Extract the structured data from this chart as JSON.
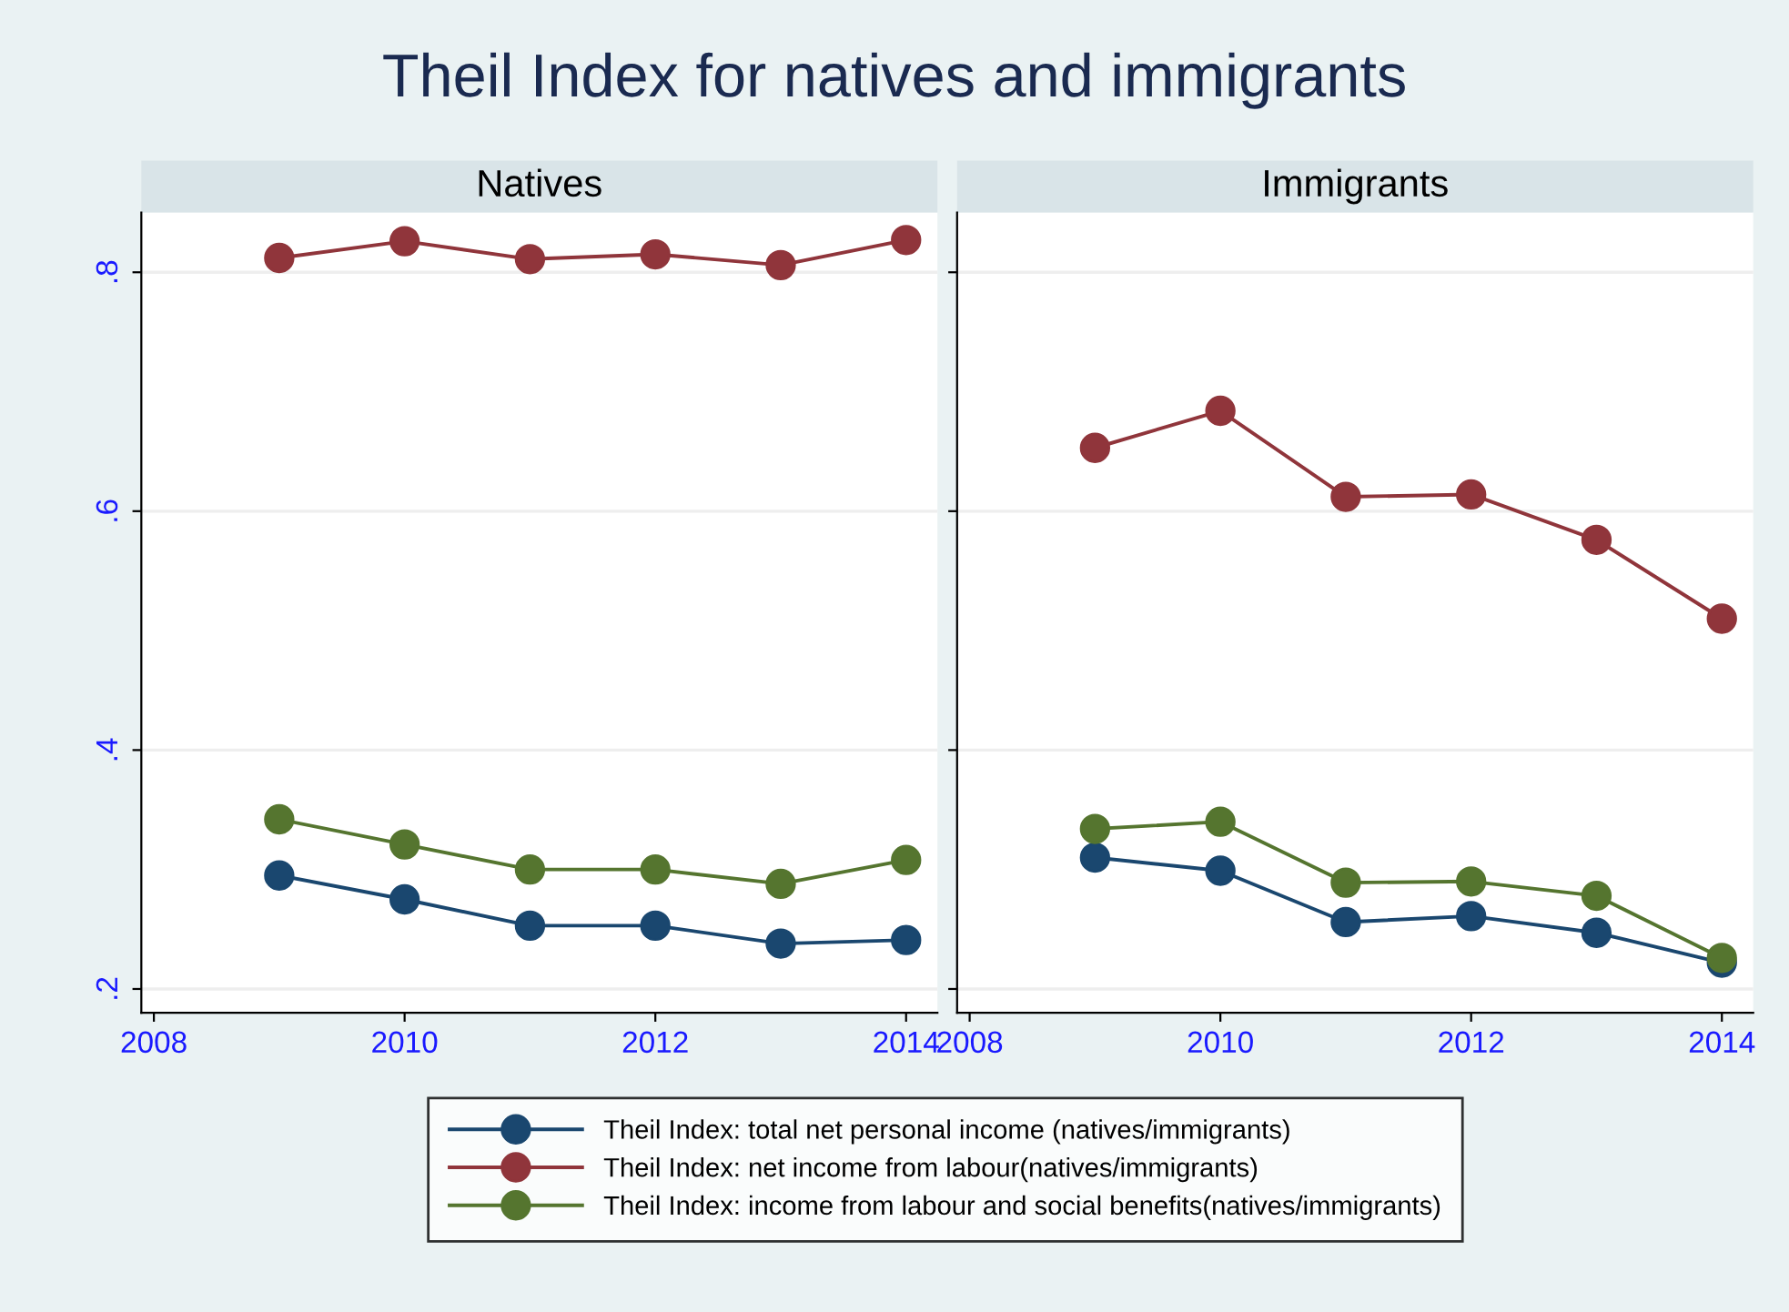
{
  "chart_data": [
    {
      "type": "line",
      "title": "Theil Index for natives and immigrants",
      "subtitle": "Natives",
      "x": [
        2009,
        2010,
        2011,
        2012,
        2013,
        2014
      ],
      "series": [
        {
          "name": "Theil Index: total net personal income (natives/immigrants)",
          "color": "#1a476f",
          "values": [
            0.295,
            0.275,
            0.253,
            0.253,
            0.238,
            0.241
          ]
        },
        {
          "name": "Theil Index: net income from labour(natives/immigrants)",
          "color": "#90353b",
          "values": [
            0.812,
            0.826,
            0.811,
            0.815,
            0.806,
            0.827
          ]
        },
        {
          "name": "Theil Index: income from labour and social benefits(natives/immigrants)",
          "color": "#55752f",
          "values": [
            0.342,
            0.321,
            0.3,
            0.3,
            0.288,
            0.308
          ]
        }
      ],
      "xlim": [
        2007.9,
        2014.25
      ],
      "xticks": [
        2008,
        2010,
        2012,
        2014
      ],
      "ylim": [
        0.18,
        0.85
      ],
      "yticks": [
        {
          "value": 0.2,
          "label": ".2"
        },
        {
          "value": 0.4,
          "label": ".4"
        },
        {
          "value": 0.6,
          "label": ".6"
        },
        {
          "value": 0.8,
          "label": ".8"
        }
      ],
      "grid": "y",
      "marker": "circle",
      "line_style": "solid",
      "legend": "bottom"
    },
    {
      "type": "line",
      "subtitle": "Immigrants",
      "x": [
        2009,
        2010,
        2011,
        2012,
        2013,
        2014
      ],
      "series": [
        {
          "color": "#1a476f",
          "values": [
            0.31,
            0.299,
            0.256,
            0.261,
            0.247,
            0.222
          ]
        },
        {
          "color": "#90353b",
          "values": [
            0.653,
            0.684,
            0.612,
            0.614,
            0.576,
            0.51
          ]
        },
        {
          "color": "#55752f",
          "values": [
            0.334,
            0.34,
            0.289,
            0.29,
            0.278,
            0.226
          ]
        }
      ],
      "xlim": [
        2007.9,
        2014.25
      ],
      "xticks": [
        2008,
        2010,
        2012,
        2014
      ],
      "ylim": [
        0.18,
        0.85
      ],
      "yticks": [
        {
          "value": 0.2,
          "label": null
        },
        {
          "value": 0.4,
          "label": null
        },
        {
          "value": 0.6,
          "label": null
        },
        {
          "value": 0.8,
          "label": null
        }
      ],
      "grid": "y",
      "marker": "circle",
      "line_style": "solid",
      "tick_labels": "x"
    }
  ]
}
